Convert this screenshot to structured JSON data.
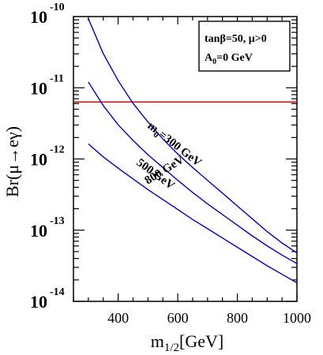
{
  "chart_data": {
    "type": "line",
    "title": "",
    "xlabel": {
      "main": "m",
      "sub": "1/2",
      "unit": "[GeV]"
    },
    "ylabel": "Br(μ→eγ)",
    "x_ticks": [
      400,
      600,
      800,
      1000
    ],
    "y_ticks": [
      {
        "base": "10",
        "exp": "-10",
        "value": -10
      },
      {
        "base": "10",
        "exp": "-11",
        "value": -11
      },
      {
        "base": "10",
        "exp": "-12",
        "value": -12
      },
      {
        "base": "10",
        "exp": "-13",
        "value": -13
      },
      {
        "base": "10",
        "exp": "-14",
        "value": -14
      }
    ],
    "xlim": [
      250,
      1000
    ],
    "ylim_log10": [
      -14,
      -10
    ],
    "y_scale": "log",
    "grid": false,
    "legend": {
      "placement": "top-right",
      "line1": "tanβ=50, μ>0",
      "line2": "A",
      "line2_sub": "0",
      "line2_rest": "=0 GeV"
    },
    "reference_line": {
      "log10_y": -11.2,
      "color": "#ff0000"
    },
    "curve_color": "#0000cc",
    "series": [
      {
        "name": "m0=300 GeV",
        "label_main": "m",
        "label_sub": "0",
        "label_rest": "=300 GeV",
        "x": [
          300,
          350,
          400,
          450,
          500,
          550,
          600,
          650,
          700,
          750,
          800,
          850,
          900,
          950,
          1000
        ],
        "log10_y": [
          -10.03,
          -10.52,
          -10.9,
          -11.22,
          -11.48,
          -11.72,
          -11.93,
          -12.12,
          -12.3,
          -12.48,
          -12.66,
          -12.84,
          -13.02,
          -13.18,
          -13.32
        ]
      },
      {
        "name": "500 GeV",
        "label_main": "500 GeV",
        "x": [
          300,
          350,
          400,
          450,
          500,
          550,
          600,
          650,
          700,
          750,
          800,
          850,
          900,
          950,
          1000
        ],
        "log10_y": [
          -10.92,
          -11.25,
          -11.52,
          -11.74,
          -11.94,
          -12.12,
          -12.3,
          -12.47,
          -12.63,
          -12.78,
          -12.93,
          -13.08,
          -13.22,
          -13.35,
          -13.47
        ]
      },
      {
        "name": "800 GeV",
        "label_main": "800 GeV",
        "x": [
          300,
          350,
          400,
          450,
          500,
          550,
          600,
          650,
          700,
          750,
          800,
          850,
          900,
          950,
          1000
        ],
        "log10_y": [
          -11.79,
          -11.97,
          -12.13,
          -12.28,
          -12.43,
          -12.57,
          -12.71,
          -12.85,
          -12.98,
          -13.11,
          -13.24,
          -13.37,
          -13.5,
          -13.62,
          -13.74
        ]
      }
    ]
  }
}
